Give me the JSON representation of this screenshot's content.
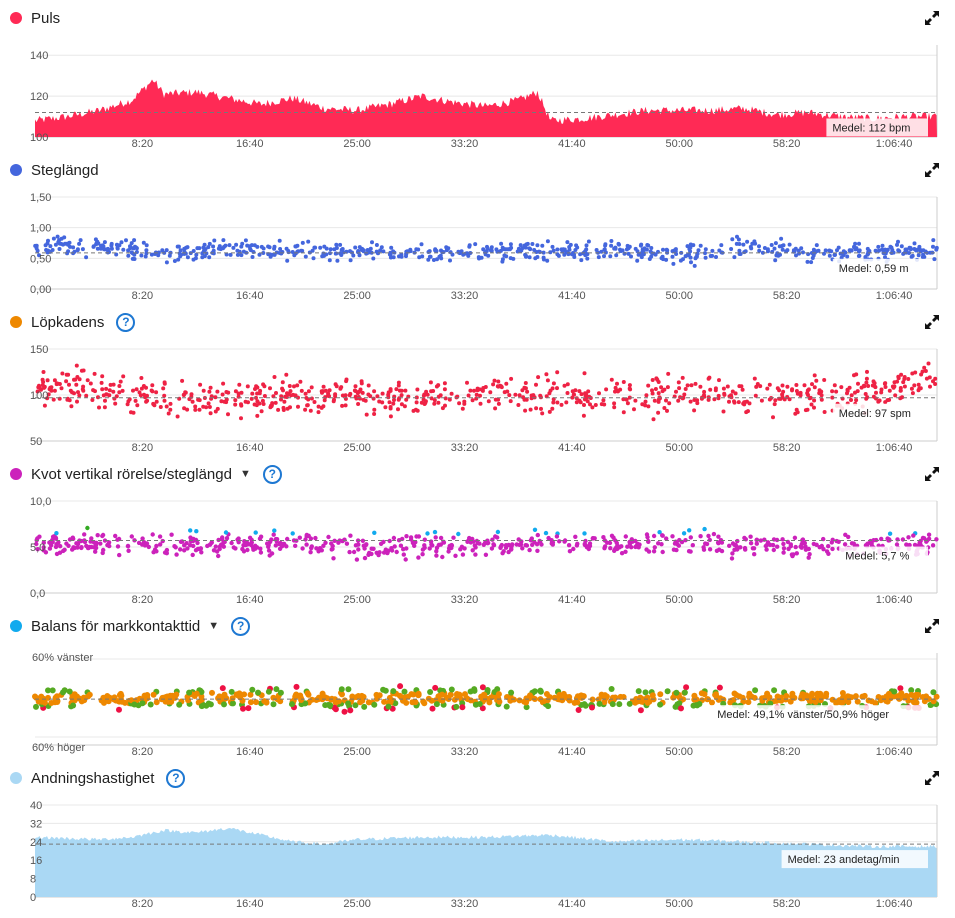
{
  "panels": [
    {
      "id": "puls",
      "title": "Puls",
      "color": "#ff2a55",
      "help": false,
      "dropdown": false,
      "y_ticks": [
        "140",
        "120",
        "100"
      ],
      "mean_label": "Medel: 112 bpm"
    },
    {
      "id": "steglangd",
      "title": "Steglängd",
      "color": "#4466dd",
      "help": false,
      "dropdown": false,
      "y_ticks": [
        "1,50",
        "1,00",
        "0,50",
        "0,00"
      ],
      "mean_label": "Medel: 0,59 m"
    },
    {
      "id": "lopkadens",
      "title": "Löpkadens",
      "color": "#ee8800",
      "help": true,
      "dropdown": false,
      "y_ticks": [
        "150",
        "100",
        "50"
      ],
      "mean_label": "Medel: 97 spm"
    },
    {
      "id": "kvot",
      "title": "Kvot vertikal rörelse/steglängd",
      "color": "#cc22bb",
      "help": true,
      "dropdown": true,
      "y_ticks": [
        "10,0",
        "5,0",
        "0,0"
      ],
      "mean_label": "Medel: 5,7 %"
    },
    {
      "id": "balans",
      "title": "Balans för markkontakttid",
      "color": "#11aaee",
      "help": true,
      "dropdown": true,
      "y_ticks": [
        "60% vänster",
        "60% höger"
      ],
      "mean_label": "Medel: 49,1% vänster/50,9% höger"
    },
    {
      "id": "andning",
      "title": "Andningshastighet",
      "color": "#aad8f4",
      "help": true,
      "dropdown": false,
      "y_ticks": [
        "40",
        "32",
        "24",
        "16",
        "8",
        "0"
      ],
      "mean_label": "Medel: 23 andetag/min"
    }
  ],
  "x_ticks": [
    "8:20",
    "16:40",
    "25:00",
    "33:20",
    "41:40",
    "50:00",
    "58:20",
    "1:06:40"
  ],
  "icons": {
    "expand": "expand-arrows-icon",
    "help": "question-circle-icon",
    "dropdown": "caret-down-icon"
  },
  "chart_data": [
    {
      "type": "area",
      "title": "Puls",
      "unit": "bpm",
      "x_unit": "elapsed time",
      "x_ticks": [
        "8:20",
        "16:40",
        "25:00",
        "33:20",
        "41:40",
        "50:00",
        "58:20",
        "1:06:40"
      ],
      "ylim": [
        100,
        145
      ],
      "mean": 112,
      "x": [
        "0:00",
        "2:30",
        "5:00",
        "7:30",
        "9:10",
        "10:00",
        "12:30",
        "15:00",
        "17:30",
        "20:00",
        "22:30",
        "25:00",
        "27:30",
        "30:00",
        "32:30",
        "35:00",
        "37:30",
        "39:00",
        "40:00",
        "42:30",
        "45:00",
        "47:30",
        "50:00",
        "52:30",
        "55:00",
        "57:30",
        "60:00",
        "62:30",
        "65:00",
        "67:30",
        "70:00"
      ],
      "values": [
        108,
        110,
        113,
        118,
        128,
        121,
        122,
        119,
        116,
        119,
        114,
        113,
        116,
        120,
        117,
        115,
        118,
        122,
        108,
        109,
        111,
        113,
        113,
        113,
        114,
        111,
        112,
        110,
        109,
        110,
        110
      ]
    },
    {
      "type": "scatter",
      "title": "Steglängd",
      "unit": "m",
      "ylim": [
        0,
        1.5
      ],
      "mean": 0.59,
      "x": [
        "0:00",
        "5:00",
        "10:00",
        "15:00",
        "20:00",
        "25:00",
        "30:00",
        "35:00",
        "40:00",
        "45:00",
        "50:00",
        "55:00",
        "60:00",
        "65:00",
        "70:00"
      ],
      "values": [
        0.7,
        0.7,
        0.55,
        0.65,
        0.6,
        0.62,
        0.58,
        0.6,
        0.62,
        0.65,
        0.55,
        0.7,
        0.6,
        0.6,
        0.62
      ]
    },
    {
      "type": "scatter",
      "title": "Löpkadens",
      "unit": "spm",
      "ylim": [
        50,
        150
      ],
      "mean": 97,
      "x": [
        "0:00",
        "5:00",
        "10:00",
        "15:00",
        "20:00",
        "25:00",
        "30:00",
        "35:00",
        "40:00",
        "45:00",
        "50:00",
        "55:00",
        "60:00",
        "65:00",
        "70:00"
      ],
      "values": [
        110,
        105,
        98,
        96,
        100,
        97,
        96,
        100,
        102,
        100,
        98,
        100,
        98,
        105,
        118
      ]
    },
    {
      "type": "scatter",
      "title": "Kvot vertikal rörelse/steglängd",
      "unit": "%",
      "ylim": [
        0,
        10
      ],
      "mean": 5.7,
      "x": [
        "0:00",
        "5:00",
        "10:00",
        "15:00",
        "20:00",
        "25:00",
        "30:00",
        "35:00",
        "40:00",
        "45:00",
        "50:00",
        "55:00",
        "60:00",
        "65:00",
        "70:00"
      ],
      "values": [
        5.5,
        5.8,
        5.6,
        5.5,
        5.7,
        5.4,
        5.6,
        5.5,
        6.0,
        5.5,
        5.8,
        5.4,
        5.3,
        5.6,
        5.6
      ]
    },
    {
      "type": "scatter",
      "title": "Balans för markkontakttid",
      "unit": "%",
      "ylim": [
        -60,
        60
      ],
      "mean": 49.1,
      "x": [
        "0:00",
        "5:00",
        "10:00",
        "15:00",
        "20:00",
        "25:00",
        "30:00",
        "35:00",
        "40:00",
        "45:00",
        "50:00",
        "55:00",
        "60:00",
        "65:00",
        "70:00"
      ],
      "values": [
        50,
        49,
        48,
        49,
        50,
        49,
        49,
        50,
        49,
        48,
        49,
        49,
        50,
        49,
        48
      ]
    },
    {
      "type": "area",
      "title": "Andningshastighet",
      "unit": "andetag/min",
      "ylim": [
        0,
        40
      ],
      "mean": 23,
      "x": [
        "0:00",
        "5:00",
        "7:30",
        "10:00",
        "12:30",
        "15:00",
        "17:30",
        "20:00",
        "22:30",
        "25:00",
        "30:00",
        "35:00",
        "40:00",
        "45:00",
        "50:00",
        "55:00",
        "60:00",
        "65:00",
        "70:00"
      ],
      "values": [
        26,
        25,
        26,
        29,
        28,
        30,
        27,
        24,
        23,
        25,
        26,
        26,
        27,
        24,
        25,
        24,
        23,
        22,
        22
      ]
    }
  ]
}
